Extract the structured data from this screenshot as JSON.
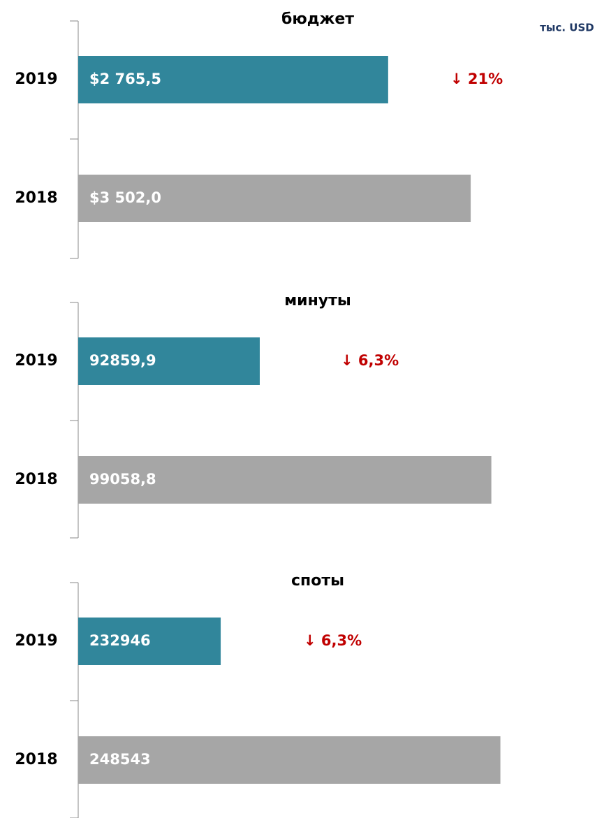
{
  "chart_data": [
    {
      "type": "bar",
      "orientation": "horizontal",
      "title": "бюджет",
      "unit": "тыс. USD",
      "categories": [
        "2019",
        "2018"
      ],
      "values": [
        2765.5,
        3502.0
      ],
      "value_labels": [
        "$2 765,5",
        "$3 502,0"
      ],
      "colors": [
        "#31869b",
        "#a6a6a6"
      ],
      "xlim": [
        0,
        4000
      ],
      "annotation": "↓ 21%"
    },
    {
      "type": "bar",
      "orientation": "horizontal",
      "title": "минуты",
      "categories": [
        "2019",
        "2018"
      ],
      "values": [
        92859.9,
        99058.8
      ],
      "value_labels": [
        "92859,9",
        "99058,8"
      ],
      "colors": [
        "#31869b",
        "#a6a6a6"
      ],
      "xlim": [
        88000,
        100000
      ],
      "annotation": "↓ 6,3%"
    },
    {
      "type": "bar",
      "orientation": "horizontal",
      "title": "споты",
      "categories": [
        "2019",
        "2018"
      ],
      "values": [
        232946,
        248543
      ],
      "value_labels": [
        "232946",
        "248543"
      ],
      "colors": [
        "#31869b",
        "#a6a6a6"
      ],
      "xlim": [
        225000,
        250000
      ],
      "annotation": "↓ 6,3%"
    }
  ]
}
